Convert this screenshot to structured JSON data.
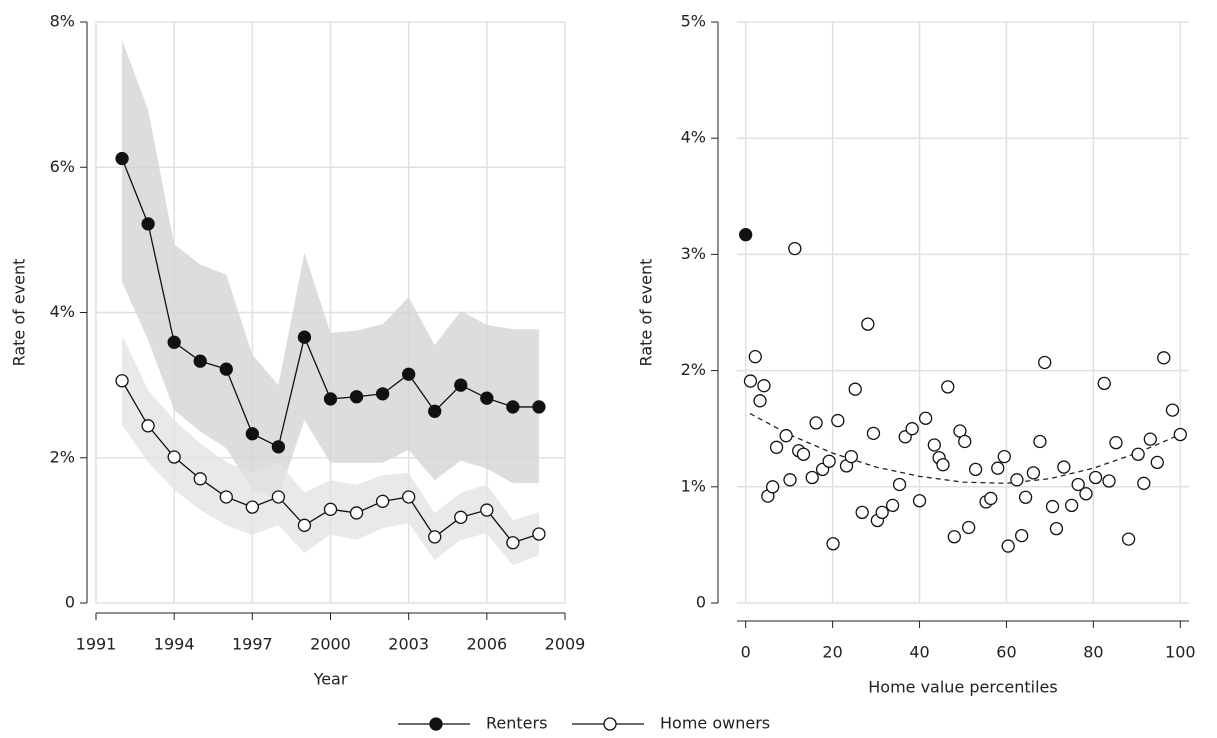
{
  "chart_data": [
    {
      "type": "line",
      "x_label": "Year",
      "y_label": "Rate of event",
      "x": [
        1992,
        1993,
        1994,
        1995,
        1996,
        1997,
        1998,
        1999,
        2000,
        2001,
        2002,
        2003,
        2004,
        2005,
        2006,
        2007,
        2008
      ],
      "xlim": [
        1991,
        2009
      ],
      "xticks": [
        1991,
        1994,
        1997,
        2000,
        2003,
        2006,
        2009
      ],
      "ylim": [
        0,
        8
      ],
      "yticks": [
        0,
        {
          "value": 2,
          "label": "2%"
        },
        {
          "value": 4,
          "label": "4%"
        },
        {
          "value": 6,
          "label": "6%"
        },
        {
          "value": 8,
          "label": "8%"
        }
      ],
      "grid": true,
      "series": [
        {
          "name": "Renters",
          "color": "#111111",
          "marker": "filled",
          "band_color": "#d4d4d4",
          "values": [
            6.12,
            5.22,
            3.59,
            3.33,
            3.22,
            2.33,
            2.15,
            3.66,
            2.81,
            2.84,
            2.88,
            3.15,
            2.64,
            3.0,
            2.82,
            2.7,
            2.7
          ],
          "upper": [
            7.75,
            6.79,
            4.94,
            4.66,
            4.52,
            3.42,
            3.0,
            4.82,
            3.72,
            3.75,
            3.84,
            4.21,
            3.55,
            4.02,
            3.83,
            3.77,
            3.77
          ],
          "lower": [
            4.42,
            3.62,
            2.66,
            2.36,
            2.13,
            1.56,
            1.45,
            2.52,
            1.93,
            1.93,
            1.93,
            2.11,
            1.69,
            1.96,
            1.85,
            1.65,
            1.65
          ]
        },
        {
          "name": "Home owners",
          "color": "#111111",
          "marker": "open",
          "band_color": "#e4e4e4",
          "values": [
            3.06,
            2.44,
            2.01,
            1.71,
            1.46,
            1.32,
            1.46,
            1.07,
            1.29,
            1.24,
            1.4,
            1.46,
            0.91,
            1.18,
            1.28,
            0.83,
            0.95
          ],
          "upper": [
            3.69,
            2.93,
            2.52,
            2.2,
            1.94,
            1.8,
            1.94,
            1.52,
            1.69,
            1.63,
            1.76,
            1.79,
            1.24,
            1.52,
            1.63,
            1.14,
            1.25
          ],
          "lower": [
            2.45,
            1.94,
            1.56,
            1.28,
            1.07,
            0.94,
            1.07,
            0.69,
            0.94,
            0.87,
            1.03,
            1.1,
            0.59,
            0.87,
            0.96,
            0.52,
            0.66
          ]
        }
      ]
    },
    {
      "type": "scatter",
      "x_label": "Home value percentiles",
      "y_label": "Rate of event",
      "xlim": [
        -2,
        102
      ],
      "xticks": [
        0,
        20,
        40,
        60,
        80,
        100
      ],
      "ylim": [
        0,
        5
      ],
      "yticks": [
        0,
        {
          "value": 1,
          "label": "1%"
        },
        {
          "value": 2,
          "label": "2%"
        },
        {
          "value": 3,
          "label": "3%"
        },
        {
          "value": 4,
          "label": "4%"
        },
        {
          "value": 5,
          "label": "5%"
        }
      ],
      "grid": true,
      "series": [
        {
          "color": "#111111",
          "marker": "filled",
          "x": [
            0
          ],
          "values": [
            3.17
          ]
        },
        {
          "color": "#111111",
          "marker": "open",
          "x": [
            1.1,
            2.2,
            3.3,
            4.2,
            5.1,
            6.2,
            7.1,
            9.3,
            10.2,
            11.3,
            12.2,
            13.3,
            15.3,
            16.2,
            17.7,
            19.2,
            20.1,
            21.2,
            23.2,
            24.3,
            25.2,
            26.8,
            28.1,
            29.4,
            30.3,
            31.4,
            33.8,
            35.4,
            36.7,
            38.3,
            40.0,
            41.4,
            43.4,
            44.5,
            45.4,
            46.5,
            48.0,
            49.3,
            50.4,
            51.3,
            52.9,
            55.3,
            56.4,
            58.0,
            59.5,
            60.4,
            62.4,
            63.5,
            64.4,
            66.2,
            67.7,
            68.8,
            70.6,
            71.5,
            73.2,
            75.0,
            76.5,
            78.3,
            80.5,
            82.5,
            83.6,
            85.2,
            88.1,
            90.3,
            91.6,
            93.1,
            94.7,
            96.2,
            98.2,
            100
          ],
          "values": [
            1.91,
            2.12,
            1.74,
            1.87,
            0.92,
            1.0,
            1.34,
            1.44,
            1.06,
            3.05,
            1.31,
            1.28,
            1.08,
            1.55,
            1.15,
            1.22,
            0.51,
            1.57,
            1.18,
            1.26,
            1.84,
            0.78,
            2.4,
            1.46,
            0.71,
            0.78,
            0.84,
            1.02,
            1.43,
            1.5,
            0.88,
            1.59,
            1.36,
            1.25,
            1.19,
            1.86,
            0.57,
            1.48,
            1.39,
            0.65,
            1.15,
            0.87,
            0.9,
            1.16,
            1.26,
            0.49,
            1.06,
            0.58,
            0.91,
            1.12,
            1.39,
            2.07,
            0.83,
            0.64,
            1.17,
            0.84,
            1.02,
            0.94,
            1.08,
            1.89,
            1.05,
            1.38,
            0.55,
            1.28,
            1.03,
            1.41,
            1.21,
            2.11,
            1.66,
            1.45
          ]
        }
      ],
      "fit": {
        "color": "#222222",
        "x": [
          1,
          10,
          20,
          30,
          40,
          50,
          60,
          70,
          80,
          90,
          100
        ],
        "values": [
          1.63,
          1.45,
          1.29,
          1.17,
          1.09,
          1.04,
          1.03,
          1.07,
          1.16,
          1.29,
          1.45
        ]
      }
    }
  ]
}
